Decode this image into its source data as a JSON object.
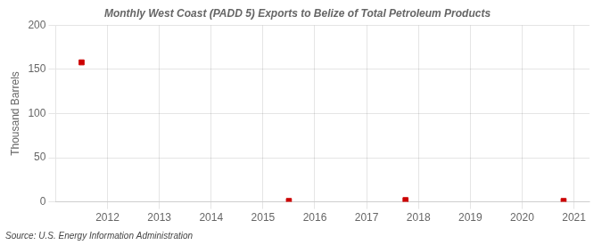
{
  "chart_data": {
    "type": "scatter",
    "title": "Monthly West Coast (PADD 5) Exports to Belize of Total Petroleum Products",
    "ylabel": "Thousand Barrels",
    "annotation": "Source: U.S. Energy Information Administration",
    "x": [
      2011.5,
      2015.5,
      2017.75,
      2020.8
    ],
    "values": [
      158,
      1,
      2,
      1
    ],
    "color": "#CC0000",
    "marker": "square",
    "xlim": [
      2011.0,
      2021.3
    ],
    "ylim": [
      0,
      200
    ],
    "xticks": [
      2012,
      2013,
      2014,
      2015,
      2016,
      2017,
      2018,
      2019,
      2020,
      2021
    ],
    "yticks": [
      0,
      50,
      100,
      150,
      200
    ],
    "grid": true
  }
}
